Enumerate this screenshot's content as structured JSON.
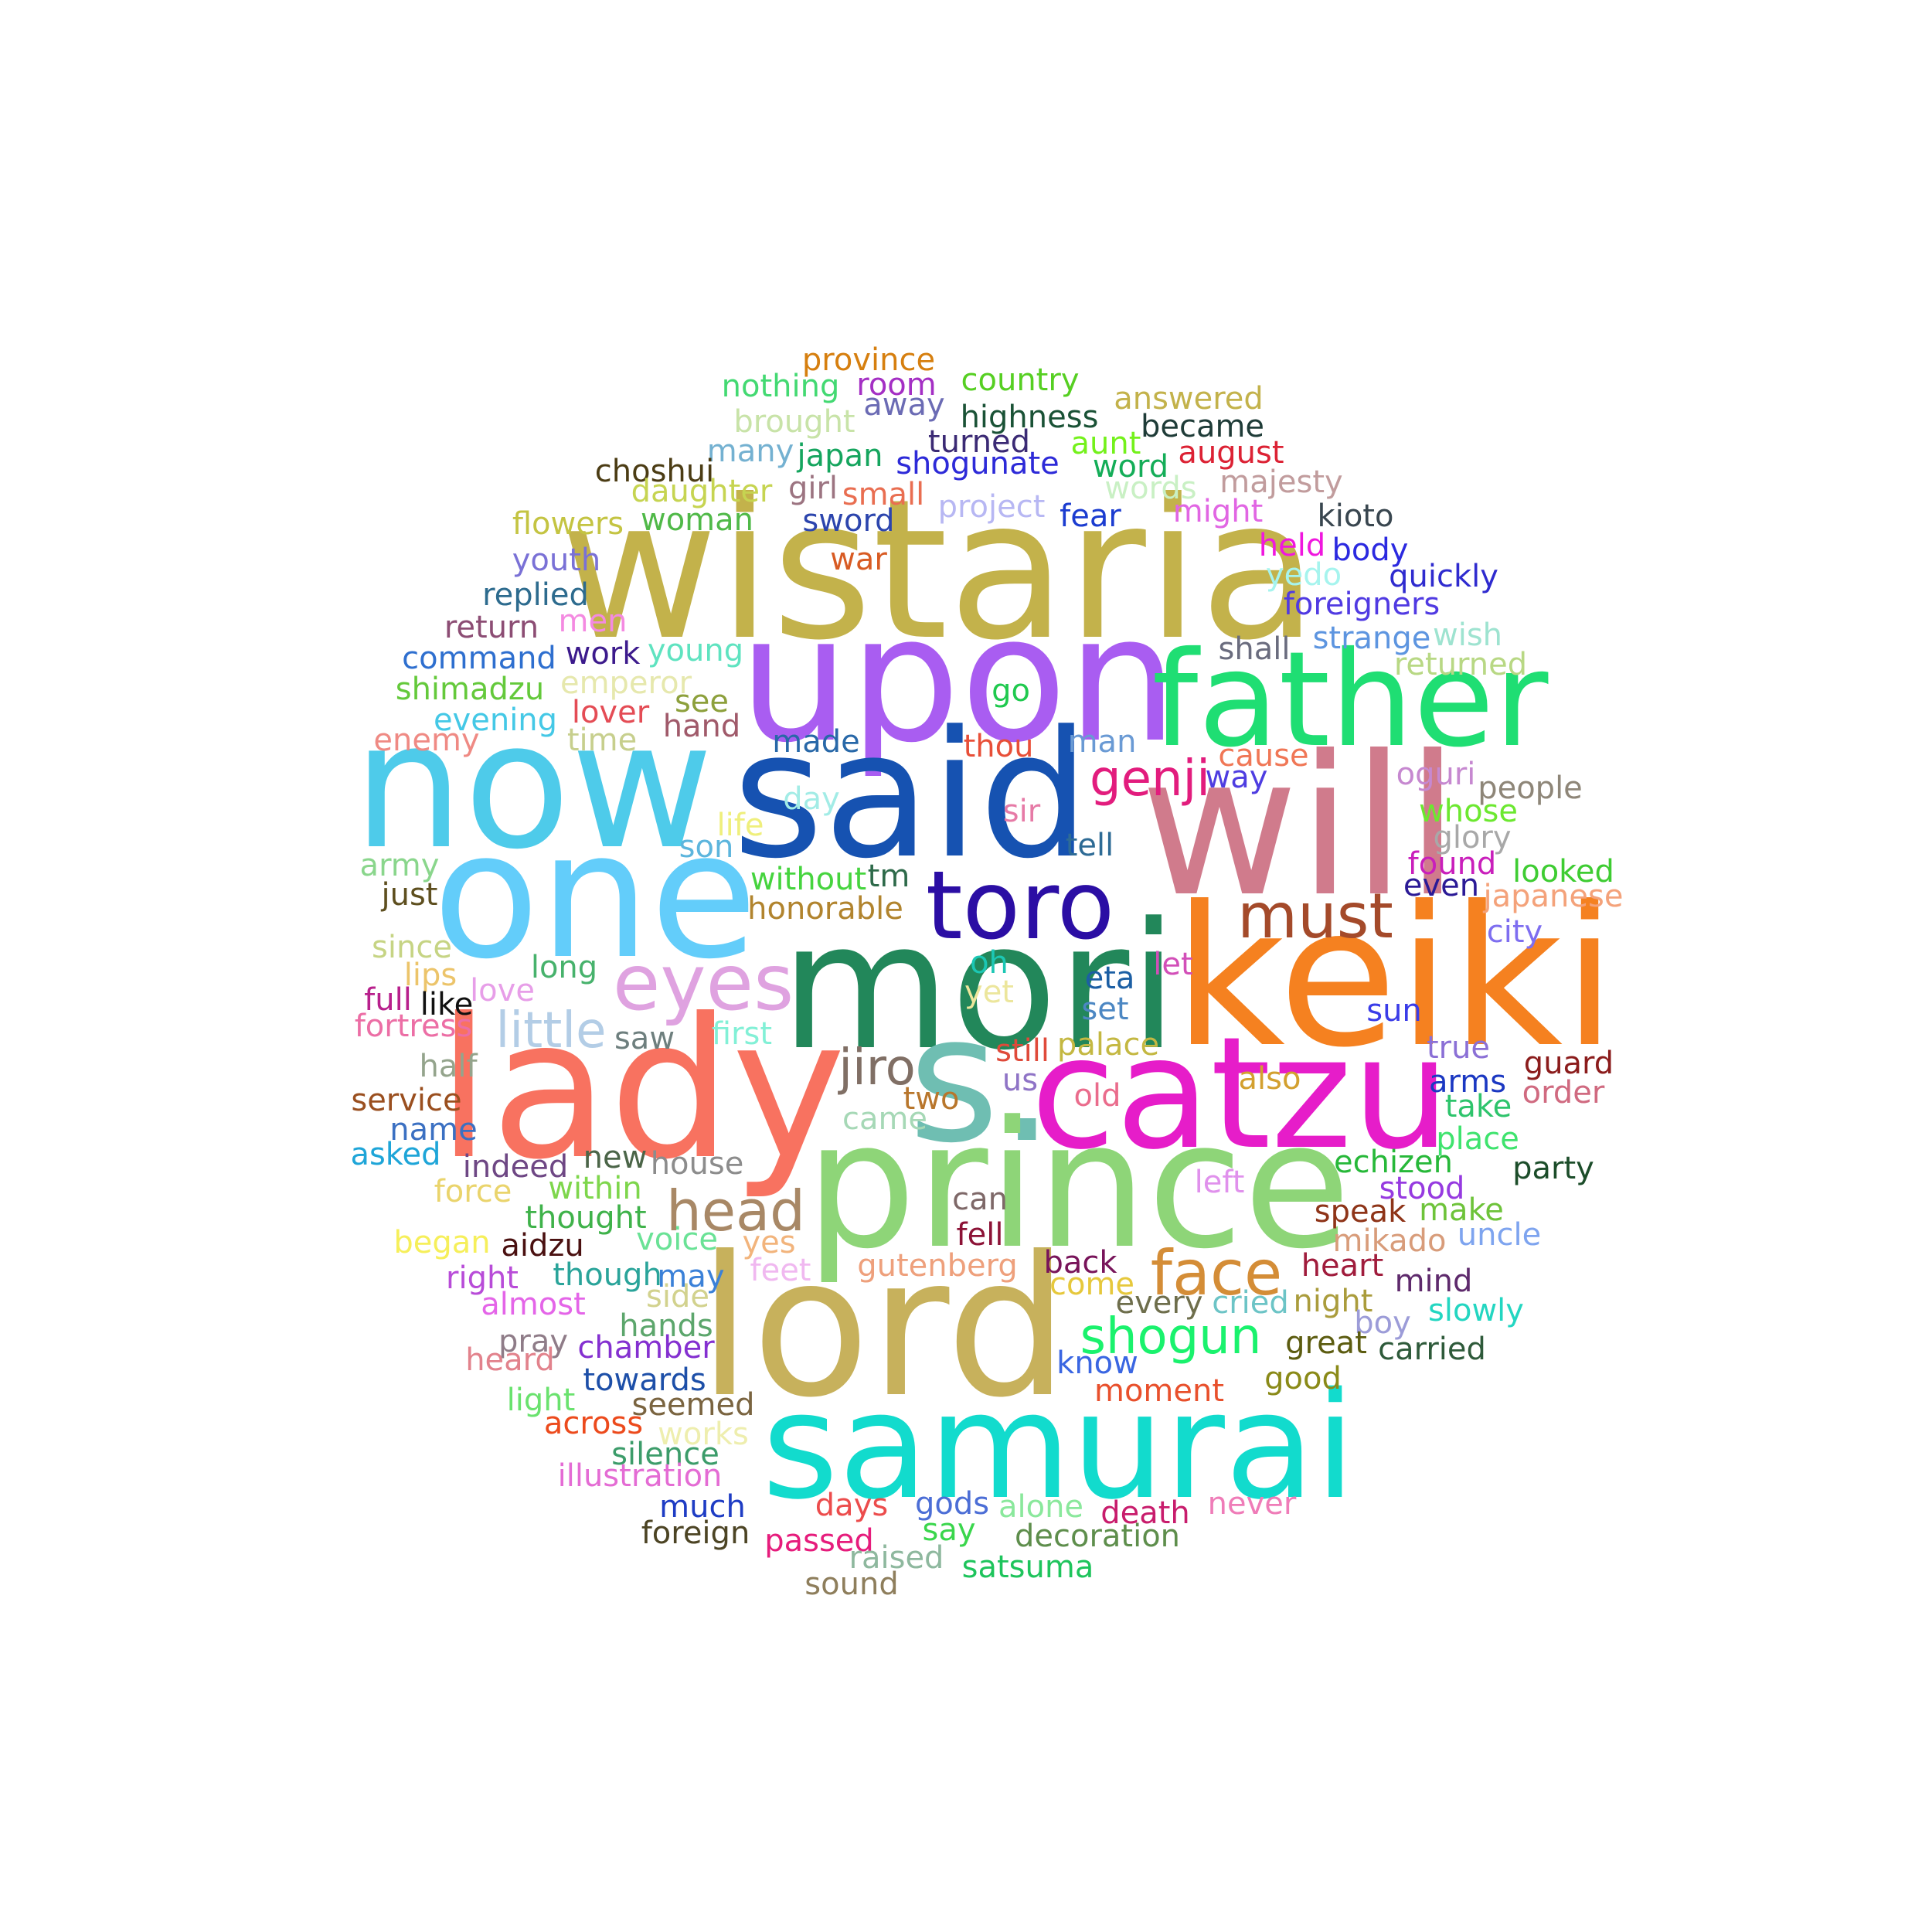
{
  "cloud": {
    "words": [
      {
        "text": "wistaria",
        "color": "#c3b24b"
      },
      {
        "text": "upon",
        "color": "#a95df1"
      },
      {
        "text": "father",
        "color": "#1fde73"
      },
      {
        "text": "now",
        "color": "#4ecbea"
      },
      {
        "text": "said",
        "color": "#1652b1"
      },
      {
        "text": "will",
        "color": "#d07b8c"
      },
      {
        "text": "one",
        "color": "#63cdfa"
      },
      {
        "text": "toro",
        "color": "#2b0ea4"
      },
      {
        "text": "mori",
        "color": "#22875a"
      },
      {
        "text": "keiki",
        "color": "#f58120"
      },
      {
        "text": "lady",
        "color": "#f87260"
      },
      {
        "text": "s.",
        "color": "#6fbeb2"
      },
      {
        "text": "catzu",
        "color": "#e61dc9"
      },
      {
        "text": "prince",
        "color": "#8ed578"
      },
      {
        "text": "lord",
        "color": "#c7b15c"
      },
      {
        "text": "samurai",
        "color": "#12dbcd"
      },
      {
        "text": "eyes",
        "color": "#dfa2e0"
      },
      {
        "text": "must",
        "color": "#a44a2a"
      },
      {
        "text": "genji",
        "color": "#e21c7d"
      },
      {
        "text": "little",
        "color": "#b3cde6"
      },
      {
        "text": "jiro",
        "color": "#806f65"
      },
      {
        "text": "head",
        "color": "#a88866"
      },
      {
        "text": "face",
        "color": "#d48d37"
      },
      {
        "text": "shogun",
        "color": "#1af26d"
      },
      {
        "text": "province",
        "color": "#d67f0f"
      },
      {
        "text": "nothing",
        "color": "#43d972"
      },
      {
        "text": "room",
        "color": "#a42fc4"
      },
      {
        "text": "country",
        "color": "#56cf22"
      },
      {
        "text": "away",
        "color": "#6b6bb4"
      },
      {
        "text": "answered",
        "color": "#c3b24b"
      },
      {
        "text": "brought",
        "color": "#c8e3a8"
      },
      {
        "text": "highness",
        "color": "#1a5236"
      },
      {
        "text": "became",
        "color": "#1f3c38"
      },
      {
        "text": "many",
        "color": "#74b1d1"
      },
      {
        "text": "japan",
        "color": "#15a55e"
      },
      {
        "text": "turned",
        "color": "#3b2a74"
      },
      {
        "text": "aunt",
        "color": "#74f11b"
      },
      {
        "text": "august",
        "color": "#dc2234"
      },
      {
        "text": "choshui",
        "color": "#4b3c14"
      },
      {
        "text": "shogunate",
        "color": "#2d2ad8"
      },
      {
        "text": "word",
        "color": "#14ad58"
      },
      {
        "text": "daughter",
        "color": "#c6d451"
      },
      {
        "text": "girl",
        "color": "#9c7481"
      },
      {
        "text": "small",
        "color": "#e96e51"
      },
      {
        "text": "majesty",
        "color": "#c19c9d"
      },
      {
        "text": "words",
        "color": "#c9f0c4"
      },
      {
        "text": "flowers",
        "color": "#c4c442"
      },
      {
        "text": "woman",
        "color": "#50b948"
      },
      {
        "text": "sword",
        "color": "#2c45ad"
      },
      {
        "text": "project",
        "color": "#b7b7f3"
      },
      {
        "text": "fear",
        "color": "#1b3cd0"
      },
      {
        "text": "might",
        "color": "#e166e3"
      },
      {
        "text": "kioto",
        "color": "#39464f"
      },
      {
        "text": "youth",
        "color": "#7a71d6"
      },
      {
        "text": "war",
        "color": "#d85b23"
      },
      {
        "text": "held",
        "color": "#f017de"
      },
      {
        "text": "body",
        "color": "#2b29e0"
      },
      {
        "text": "replied",
        "color": "#2d6b8e"
      },
      {
        "text": "yedo",
        "color": "#a6f4ee"
      },
      {
        "text": "quickly",
        "color": "#2f2bcf"
      },
      {
        "text": "return",
        "color": "#8c4d74"
      },
      {
        "text": "men",
        "color": "#f48ae1"
      },
      {
        "text": "foreigners",
        "color": "#503ae2"
      },
      {
        "text": "command",
        "color": "#2e6fcf"
      },
      {
        "text": "work",
        "color": "#3c1a8c"
      },
      {
        "text": "young",
        "color": "#5fe3c0"
      },
      {
        "text": "shall",
        "color": "#6a6c7e"
      },
      {
        "text": "strange",
        "color": "#5d95e0"
      },
      {
        "text": "wish",
        "color": "#9ee3d0"
      },
      {
        "text": "shimadzu",
        "color": "#64c93b"
      },
      {
        "text": "emperor",
        "color": "#e6e8ad"
      },
      {
        "text": "returned",
        "color": "#b8d884"
      },
      {
        "text": "see",
        "color": "#8da03c"
      },
      {
        "text": "go",
        "color": "#1fc94e"
      },
      {
        "text": "evening",
        "color": "#44c8e6"
      },
      {
        "text": "lover",
        "color": "#e44c55"
      },
      {
        "text": "hand",
        "color": "#a05a6a"
      },
      {
        "text": "enemy",
        "color": "#ef8a84"
      },
      {
        "text": "time",
        "color": "#c7cf8d"
      },
      {
        "text": "made",
        "color": "#2868a8"
      },
      {
        "text": "thou",
        "color": "#e84f38"
      },
      {
        "text": "man",
        "color": "#6a9ad4"
      },
      {
        "text": "cause",
        "color": "#f07756"
      },
      {
        "text": "way",
        "color": "#4e3de1"
      },
      {
        "text": "oguri",
        "color": "#c688d0"
      },
      {
        "text": "people",
        "color": "#8e8678"
      },
      {
        "text": "day",
        "color": "#a2ece6"
      },
      {
        "text": "sir",
        "color": "#e67aa6"
      },
      {
        "text": "whose",
        "color": "#6ce830"
      },
      {
        "text": "life",
        "color": "#efef7c"
      },
      {
        "text": "glory",
        "color": "#a8a8a8"
      },
      {
        "text": "son",
        "color": "#5cb5dd"
      },
      {
        "text": "tell",
        "color": "#2e6b95"
      },
      {
        "text": "army",
        "color": "#8ad68c"
      },
      {
        "text": "without",
        "color": "#46d43e"
      },
      {
        "text": "tm",
        "color": "#2e6a4a"
      },
      {
        "text": "found",
        "color": "#c91fbb"
      },
      {
        "text": "looked",
        "color": "#3ecc32"
      },
      {
        "text": "just",
        "color": "#5e4f1f"
      },
      {
        "text": "honorable",
        "color": "#b1842e"
      },
      {
        "text": "even",
        "color": "#2b1a96"
      },
      {
        "text": "japanese",
        "color": "#f4a27a"
      },
      {
        "text": "city",
        "color": "#7e6ef0"
      },
      {
        "text": "since",
        "color": "#c6d484"
      },
      {
        "text": "long",
        "color": "#47b26c"
      },
      {
        "text": "oh",
        "color": "#1cc7b4"
      },
      {
        "text": "let",
        "color": "#d24fb8"
      },
      {
        "text": "lips",
        "color": "#ecc46a"
      },
      {
        "text": "eta",
        "color": "#1c5fa4"
      },
      {
        "text": "yet",
        "color": "#ece69c"
      },
      {
        "text": "full",
        "color": "#b8208c"
      },
      {
        "text": "like",
        "color": "#111111"
      },
      {
        "text": "love",
        "color": "#e79ee8"
      },
      {
        "text": "set",
        "color": "#4c87c3"
      },
      {
        "text": "sun",
        "color": "#3a3ce8"
      },
      {
        "text": "fortress",
        "color": "#ec6ea5"
      },
      {
        "text": "saw",
        "color": "#6e7f7e"
      },
      {
        "text": "first",
        "color": "#82f0d6"
      },
      {
        "text": "still",
        "color": "#df4a3a"
      },
      {
        "text": "palace",
        "color": "#c4b842"
      },
      {
        "text": "true",
        "color": "#8b70d6"
      },
      {
        "text": "guard",
        "color": "#8b1c1c"
      },
      {
        "text": "half",
        "color": "#94a48c"
      },
      {
        "text": "us",
        "color": "#8f74c6"
      },
      {
        "text": "also",
        "color": "#d3a02f"
      },
      {
        "text": "arms",
        "color": "#1b38c2"
      },
      {
        "text": "order",
        "color": "#d06a80"
      },
      {
        "text": "service",
        "color": "#9a4f1f"
      },
      {
        "text": "two",
        "color": "#b8762c"
      },
      {
        "text": "old",
        "color": "#ea6c8c"
      },
      {
        "text": "take",
        "color": "#2ec46c"
      },
      {
        "text": "name",
        "color": "#3b70c2"
      },
      {
        "text": "came",
        "color": "#a6d8b6"
      },
      {
        "text": "place",
        "color": "#3fe36e"
      },
      {
        "text": "asked",
        "color": "#1ea5d8"
      },
      {
        "text": "new",
        "color": "#4b6548"
      },
      {
        "text": "indeed",
        "color": "#6e4784"
      },
      {
        "text": "house",
        "color": "#8c8c8c"
      },
      {
        "text": "echizen",
        "color": "#27b839"
      },
      {
        "text": "party",
        "color": "#1c4d2a"
      },
      {
        "text": "left",
        "color": "#e091ec"
      },
      {
        "text": "stood",
        "color": "#963ae0"
      },
      {
        "text": "force",
        "color": "#ead46c"
      },
      {
        "text": "within",
        "color": "#7ed64c"
      },
      {
        "text": "can",
        "color": "#7e6868"
      },
      {
        "text": "speak",
        "color": "#8e3418"
      },
      {
        "text": "make",
        "color": "#6ec33a"
      },
      {
        "text": "thought",
        "color": "#3fb24a"
      },
      {
        "text": "fell",
        "color": "#8c1236"
      },
      {
        "text": "mikado",
        "color": "#d89c7a"
      },
      {
        "text": "uncle",
        "color": "#7ea4ef"
      },
      {
        "text": "began",
        "color": "#f6ef5a"
      },
      {
        "text": "aidzu",
        "color": "#4a1010"
      },
      {
        "text": "voice",
        "color": "#6ae296"
      },
      {
        "text": "yes",
        "color": "#f2b47c"
      },
      {
        "text": "right",
        "color": "#b84cd8"
      },
      {
        "text": "though",
        "color": "#2aa49a"
      },
      {
        "text": "may",
        "color": "#3b81d8"
      },
      {
        "text": "feet",
        "color": "#f0b8f0"
      },
      {
        "text": "gutenberg",
        "color": "#eea07c"
      },
      {
        "text": "back",
        "color": "#78145a"
      },
      {
        "text": "heart",
        "color": "#a01c3c"
      },
      {
        "text": "mind",
        "color": "#5e2a6c"
      },
      {
        "text": "almost",
        "color": "#e465e8"
      },
      {
        "text": "side",
        "color": "#d2d28e"
      },
      {
        "text": "come",
        "color": "#e6c83c"
      },
      {
        "text": "every",
        "color": "#6e6e4c"
      },
      {
        "text": "cried",
        "color": "#6cc4c6"
      },
      {
        "text": "night",
        "color": "#aa9c3c"
      },
      {
        "text": "slowly",
        "color": "#23d6c1"
      },
      {
        "text": "hands",
        "color": "#5ca66c"
      },
      {
        "text": "boy",
        "color": "#9c9cd8"
      },
      {
        "text": "pray",
        "color": "#8f7c88"
      },
      {
        "text": "chamber",
        "color": "#8430d0"
      },
      {
        "text": "great",
        "color": "#5c5c10"
      },
      {
        "text": "carried",
        "color": "#2e5a3a"
      },
      {
        "text": "heard",
        "color": "#e2828c"
      },
      {
        "text": "know",
        "color": "#3a66e2"
      },
      {
        "text": "towards",
        "color": "#1d4fa8"
      },
      {
        "text": "good",
        "color": "#8a8a18"
      },
      {
        "text": "moment",
        "color": "#e8502c"
      },
      {
        "text": "light",
        "color": "#6ae26e"
      },
      {
        "text": "seemed",
        "color": "#7a6440"
      },
      {
        "text": "across",
        "color": "#ec4a1c"
      },
      {
        "text": "works",
        "color": "#eeeeae"
      },
      {
        "text": "silence",
        "color": "#3c9c6a"
      },
      {
        "text": "illustration",
        "color": "#e46cd4"
      },
      {
        "text": "much",
        "color": "#1e3cc4"
      },
      {
        "text": "days",
        "color": "#ec4c4c"
      },
      {
        "text": "gods",
        "color": "#4c6ed6"
      },
      {
        "text": "alone",
        "color": "#8ae89c"
      },
      {
        "text": "death",
        "color": "#c81c6c"
      },
      {
        "text": "never",
        "color": "#ef7cb8"
      },
      {
        "text": "foreign",
        "color": "#4c4424"
      },
      {
        "text": "say",
        "color": "#3ad64c"
      },
      {
        "text": "passed",
        "color": "#e61c7c"
      },
      {
        "text": "decoration",
        "color": "#5e8e4c"
      },
      {
        "text": "raised",
        "color": "#8eb89e"
      },
      {
        "text": "satsuma",
        "color": "#1ec45c"
      },
      {
        "text": "sound",
        "color": "#8e7e5c"
      }
    ]
  }
}
